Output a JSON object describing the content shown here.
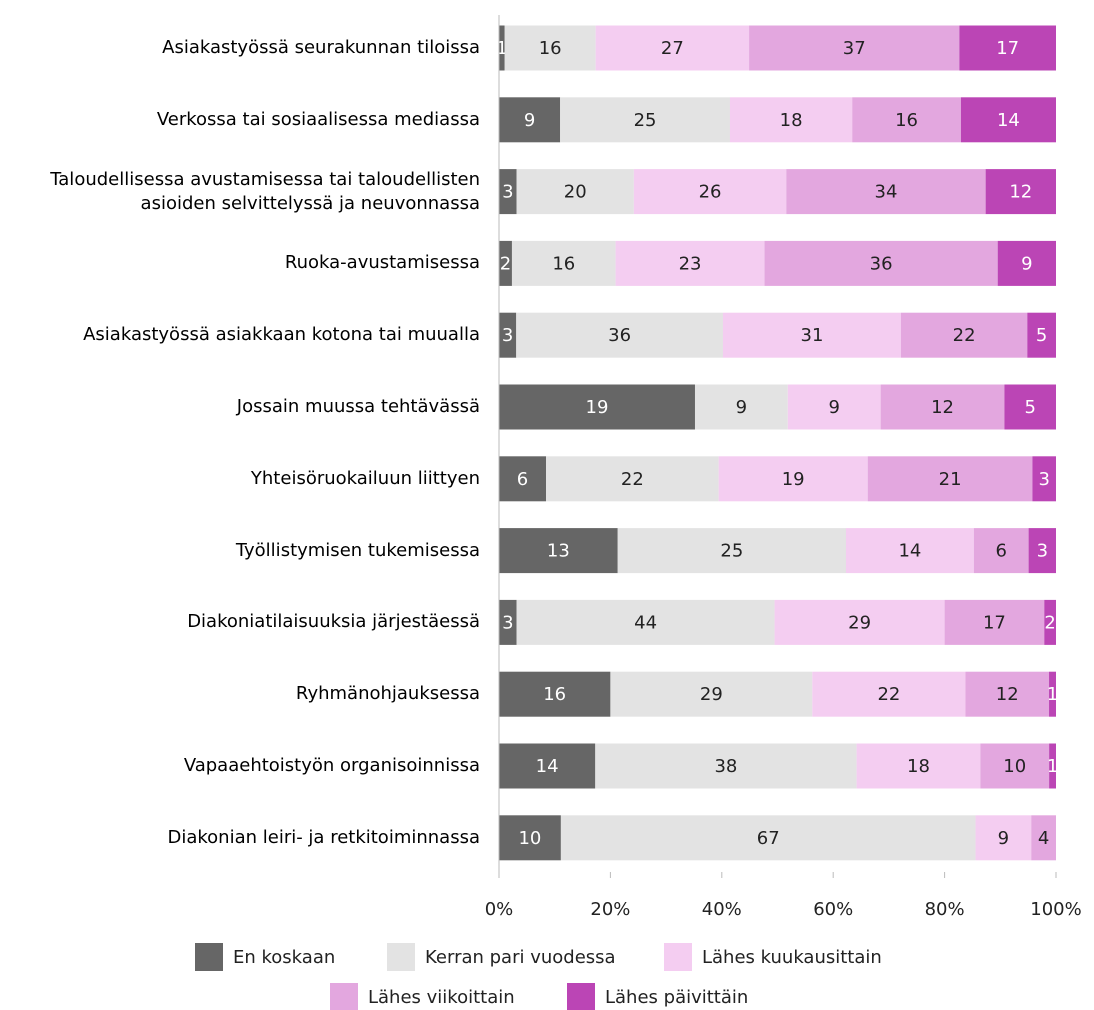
{
  "chart_data": {
    "type": "stacked_bar_100",
    "categories": [
      "Asiakastyössä seurakunnan tiloissa",
      "Verkossa tai sosiaalisessa mediassa",
      "Taloudellisessa avustamisessa tai taloudellisten\nasioiden selvittelyssä ja neuvonnassa",
      "Ruoka-avustamisessa",
      "Asiakastyössä asiakkaan kotona tai muualla",
      "Jossain muussa tehtävässä",
      "Yhteisöruokailuun liittyen",
      "Työllistymisen tukemisessa",
      "Diakoniatilaisuuksia järjestäessä",
      "Ryhmänohjauksessa",
      "Vapaaehtoistyön organisoinnissa",
      "Diakonian leiri- ja retkitoiminnassa"
    ],
    "series": [
      {
        "name": "En koskaan",
        "color": "#666666",
        "values": [
          1,
          9,
          3,
          2,
          3,
          19,
          6,
          13,
          3,
          16,
          14,
          10
        ]
      },
      {
        "name": "Kerran pari vuodessa",
        "color": "#e3e3e3",
        "values": [
          16,
          25,
          20,
          16,
          36,
          9,
          22,
          25,
          44,
          29,
          38,
          67
        ]
      },
      {
        "name": "Lähes kuukausittain",
        "color": "#f4cdf1",
        "values": [
          27,
          18,
          26,
          23,
          31,
          9,
          19,
          14,
          29,
          22,
          18,
          9
        ]
      },
      {
        "name": "Lähes viikoittain",
        "color": "#e3a7df",
        "values": [
          37,
          16,
          34,
          36,
          22,
          12,
          21,
          6,
          17,
          12,
          10,
          4
        ]
      },
      {
        "name": "Lähes päivittäin",
        "color": "#bb45b5",
        "values": [
          17,
          14,
          12,
          9,
          5,
          5,
          3,
          3,
          2,
          1,
          1,
          null
        ]
      }
    ],
    "xlim": [
      0,
      100
    ],
    "xticks": [
      {
        "value": 0,
        "label": "0%"
      },
      {
        "value": 20,
        "label": "20%"
      },
      {
        "value": 40,
        "label": "40%"
      },
      {
        "value": 60,
        "label": "60%"
      },
      {
        "value": 80,
        "label": "80%"
      },
      {
        "value": 100,
        "label": "100%"
      }
    ]
  }
}
